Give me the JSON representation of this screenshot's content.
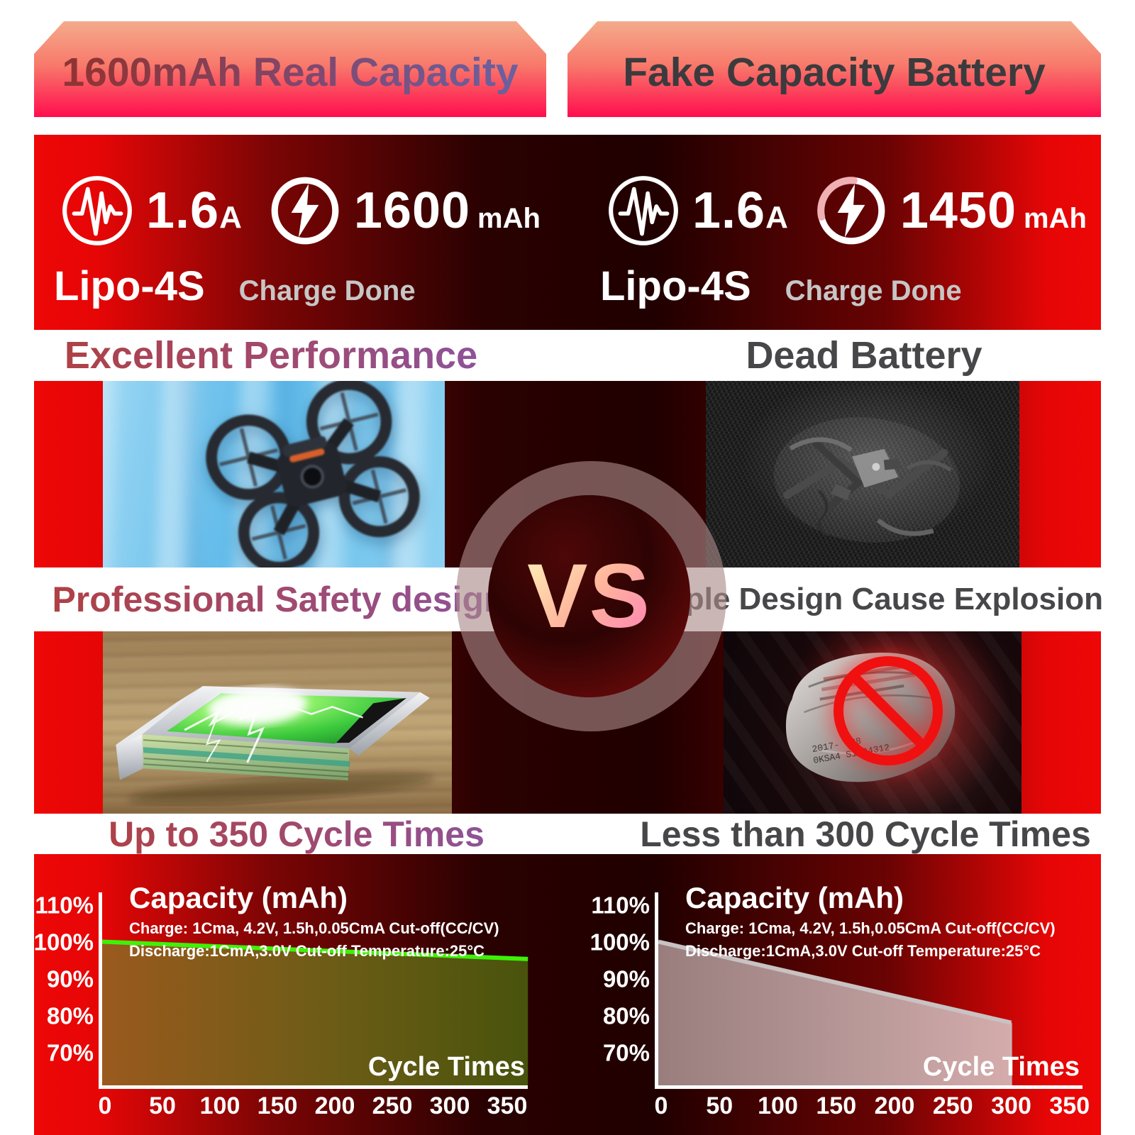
{
  "banners": {
    "left": "1600mAh Real Capacity",
    "right": "Fake Capacity Battery"
  },
  "specs": {
    "left": {
      "discharge_current": "1.6",
      "current_unit": "A",
      "capacity": "1600",
      "capacity_unit": "mAh",
      "battery_type": "Lipo-4S",
      "charge_status": "Charge Done"
    },
    "right": {
      "discharge_current": "1.6",
      "current_unit": "A",
      "capacity": "1450",
      "capacity_unit": "mAh",
      "battery_type": "Lipo-4S",
      "charge_status": "Charge Done"
    }
  },
  "headings": {
    "performance": {
      "left": "Excellent Performance",
      "right": "Dead Battery"
    },
    "safety": {
      "left": "Professional Safety design",
      "right": "Simple Design Cause Explosion"
    },
    "cycle_life": {
      "left": "Up to 350 Cycle Times",
      "right": "Less than 300 Cycle Times"
    }
  },
  "vs_badge": "VS",
  "photos": {
    "drone_flying": "quadcopter drone flying against blurred blue sky",
    "crashed_drone": "crashed drone wreck on grass, black and white",
    "battery_cutaway": "lipo battery cell with green plates and lightning on wood table",
    "swollen_battery": "swollen lipo pouch cell with red prohibition symbol",
    "pouch_print": [
      "2017- -28",
      "0KSA4  S1004312"
    ]
  },
  "icons": {
    "current": "pulse-waveform-icon",
    "capacity_left": "lightning-bolt-full-ring-icon",
    "capacity_right": "lightning-bolt-broken-ring-icon",
    "prohibition": "no-entry-slash-icon"
  },
  "colors": {
    "page_bg": "#ffffff",
    "bright_red": "#ee0707",
    "dark_maroon": "#240000",
    "banner_gradient_top": "#f4ab8b",
    "banner_gradient_bottom": "#ff0d4e",
    "left_heading_gradient": [
      "#b04040",
      "#8a54a0"
    ],
    "right_heading_gray": "#474749",
    "charge_done_gray": "#c6c6c6",
    "good_curve_green": "#3df207",
    "bad_curve_gray": "#c9c2c2",
    "vs_text_gradient": [
      "#ffe2b2",
      "#ff8fb0"
    ]
  },
  "chart_data": [
    {
      "type": "area",
      "side": "left",
      "title": "Capacity (mAh)",
      "conditions": [
        "Charge: 1Cma, 4.2V, 1.5h,0.05CmA Cut-off(CC/CV)",
        "Discharge:1CmA,3.0V Cut-off  Temperature:25°C"
      ],
      "xlabel": "Cycle Times",
      "x_ticks": [
        0,
        50,
        100,
        150,
        200,
        250,
        300,
        350
      ],
      "y_ticks": [
        110,
        100,
        90,
        80,
        70
      ],
      "y_tick_suffix": "%",
      "xlim": [
        0,
        368
      ],
      "ylim": [
        61,
        113
      ],
      "grid": false,
      "legend": "none",
      "series": [
        {
          "name": "Real 1600mAh capacity retention",
          "points": [
            [
              0,
              100
            ],
            [
              368,
              95.3
            ]
          ],
          "end_drop": false
        }
      ],
      "line_color": "#3df207",
      "fill": "gradient-brown-olive"
    },
    {
      "type": "area",
      "side": "right",
      "title": "Capacity (mAh)",
      "conditions": [
        "Charge: 1Cma, 4.2V, 1.5h,0.05CmA Cut-off(CC/CV)",
        "Discharge:1CmA,3.0V Cut-off  Temperature:25°C"
      ],
      "xlabel": "Cycle Times",
      "x_ticks": [
        0,
        50,
        100,
        150,
        200,
        250,
        300,
        350
      ],
      "y_ticks": [
        110,
        100,
        90,
        80,
        70
      ],
      "y_tick_suffix": "%",
      "xlim": [
        0,
        360
      ],
      "ylim": [
        61,
        113
      ],
      "grid": false,
      "legend": "none",
      "series": [
        {
          "name": "Fake capacity battery retention",
          "points": [
            [
              0,
              100
            ],
            [
              300,
              78
            ]
          ],
          "end_drop": true
        }
      ],
      "line_color": "#c9c2c2",
      "fill": "translucent-gray"
    }
  ]
}
